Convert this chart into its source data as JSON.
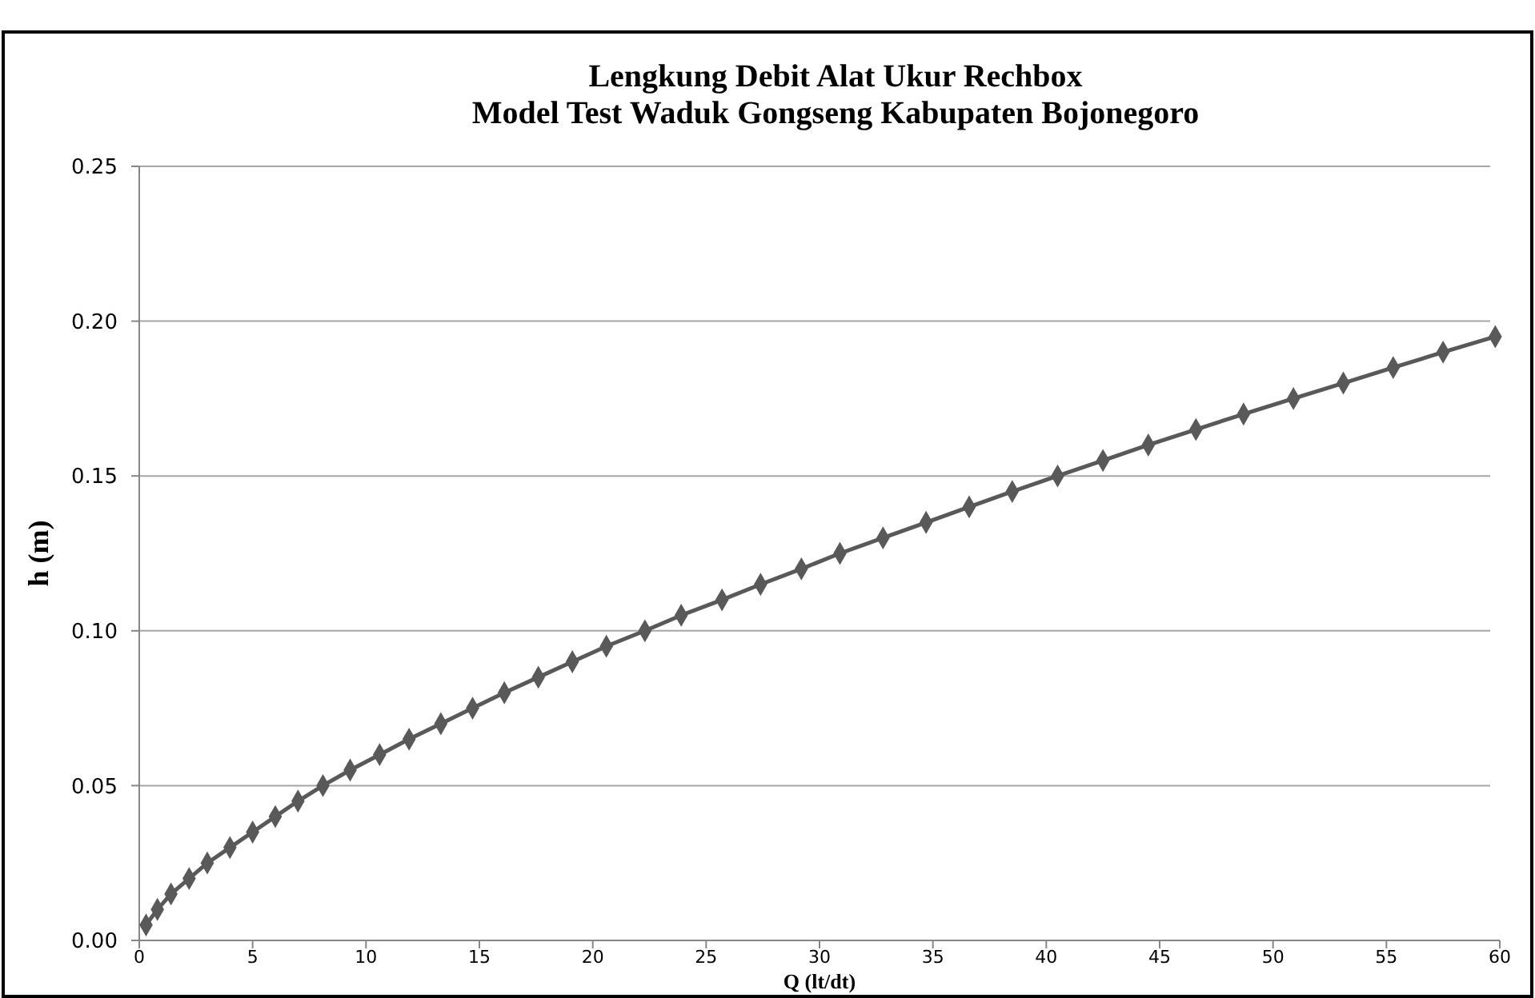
{
  "chart_data": {
    "type": "line",
    "title": "Lengkung Debit Alat Ukur Rechbox\nModel Test Waduk Gongseng Kabupaten Bojonegoro",
    "xlabel": "Q (lt/dt)",
    "ylabel": "h (m)",
    "x": [
      0.3,
      0.8,
      1.4,
      2.2,
      3.0,
      4.0,
      5.0,
      6.0,
      7.0,
      8.1,
      9.3,
      10.6,
      11.9,
      13.3,
      14.7,
      16.1,
      17.6,
      19.1,
      20.6,
      22.3,
      23.9,
      25.7,
      27.4,
      29.2,
      30.9,
      32.8,
      34.7,
      36.6,
      38.5,
      40.5,
      42.5,
      44.5,
      46.6,
      48.7,
      50.9,
      53.1,
      55.3,
      57.5,
      59.8
    ],
    "series": [
      {
        "color": "#595959",
        "values": [
          0.005,
          0.01,
          0.015,
          0.02,
          0.025,
          0.03,
          0.035,
          0.04,
          0.045,
          0.05,
          0.055,
          0.06,
          0.065,
          0.07,
          0.075,
          0.08,
          0.085,
          0.09,
          0.095,
          0.1,
          0.105,
          0.11,
          0.115,
          0.12,
          0.125,
          0.13,
          0.135,
          0.14,
          0.145,
          0.15,
          0.155,
          0.16,
          0.165,
          0.17,
          0.175,
          0.18,
          0.185,
          0.19,
          0.195
        ]
      }
    ],
    "xlim": [
      0,
      60
    ],
    "xticks": [
      0,
      5,
      10,
      15,
      20,
      25,
      30,
      35,
      40,
      45,
      50,
      55,
      60
    ],
    "ylim": [
      0,
      0.25
    ],
    "yticks": [
      {
        "value": 0,
        "label": "0.00"
      },
      {
        "value": 0.05,
        "label": "0.05"
      },
      {
        "value": 0.1,
        "label": "0.10"
      },
      {
        "value": 0.15,
        "label": "0.15"
      },
      {
        "value": 0.2,
        "label": "0.20"
      },
      {
        "value": 0.25,
        "label": "0.25"
      }
    ],
    "grid": "y",
    "marker": "diamond",
    "line_style": "solid"
  }
}
